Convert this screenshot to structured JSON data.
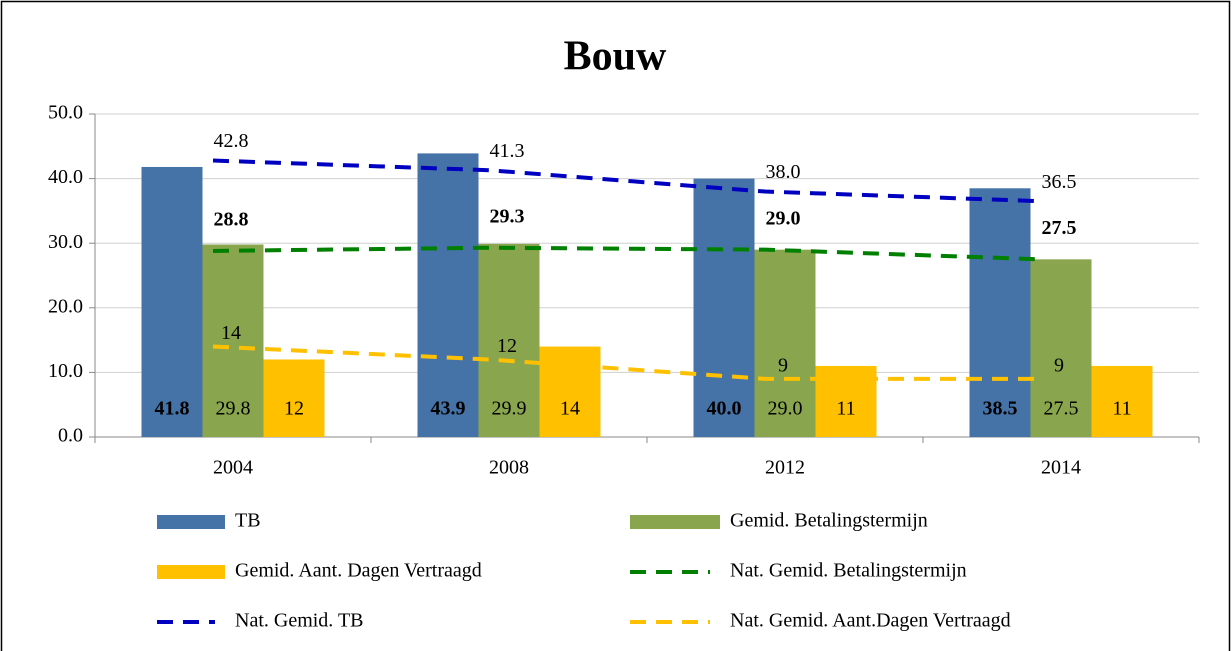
{
  "chart_data": {
    "type": "bar",
    "title": "Bouw",
    "categories": [
      "2004",
      "2008",
      "2012",
      "2014"
    ],
    "ylim": [
      0,
      50
    ],
    "yticks": [
      {
        "value": 0,
        "label": "0.0"
      },
      {
        "value": 10,
        "label": "10.0"
      },
      {
        "value": 20,
        "label": "20.0"
      },
      {
        "value": 30,
        "label": "30.0"
      },
      {
        "value": 40,
        "label": "40.0"
      },
      {
        "value": 50,
        "label": "50.0"
      }
    ],
    "grid": true,
    "series": [
      {
        "name": "TB",
        "type": "bar",
        "color": "#4572a7",
        "label_color": "#ffffff",
        "values": [
          41.8,
          43.9,
          40.0,
          38.5
        ],
        "value_labels": [
          "41.8",
          "43.9",
          "40.0",
          "38.5"
        ]
      },
      {
        "name": "Gemid. Betalingstermijn",
        "type": "bar",
        "color": "#89a54e",
        "label_color": "#000000",
        "values": [
          29.8,
          29.9,
          29.0,
          27.5
        ],
        "value_labels": [
          "29.8",
          "29.9",
          "29.0",
          "27.5"
        ]
      },
      {
        "name": "Gemid. Aant. Dagen Vertraagd",
        "type": "bar",
        "color": "#ffc000",
        "label_color": "#000000",
        "values": [
          12,
          14,
          11,
          11
        ]
      },
      {
        "name": "Nat. Gemid. Betalingstermijn",
        "type": "line",
        "color": "#008000",
        "label_color": "#4f6228",
        "values": [
          28.8,
          29.3,
          29.0,
          27.5
        ],
        "value_labels": [
          "28.8",
          "29.3",
          "29.0",
          "27.5"
        ]
      },
      {
        "name": "Nat. Gemid. TB",
        "type": "line",
        "color": "#0000c0",
        "label_color": "#0000c0",
        "values": [
          42.8,
          41.3,
          38.0,
          36.5
        ],
        "value_labels": [
          "42.8",
          "41.3",
          "38.0",
          "36.5"
        ]
      },
      {
        "name": "Nat. Gemid. Aant.Dagen Vertraagd",
        "type": "line",
        "color": "#ffc000",
        "label_color": "#ffc000",
        "values": [
          14,
          12,
          9,
          9
        ]
      }
    ]
  }
}
